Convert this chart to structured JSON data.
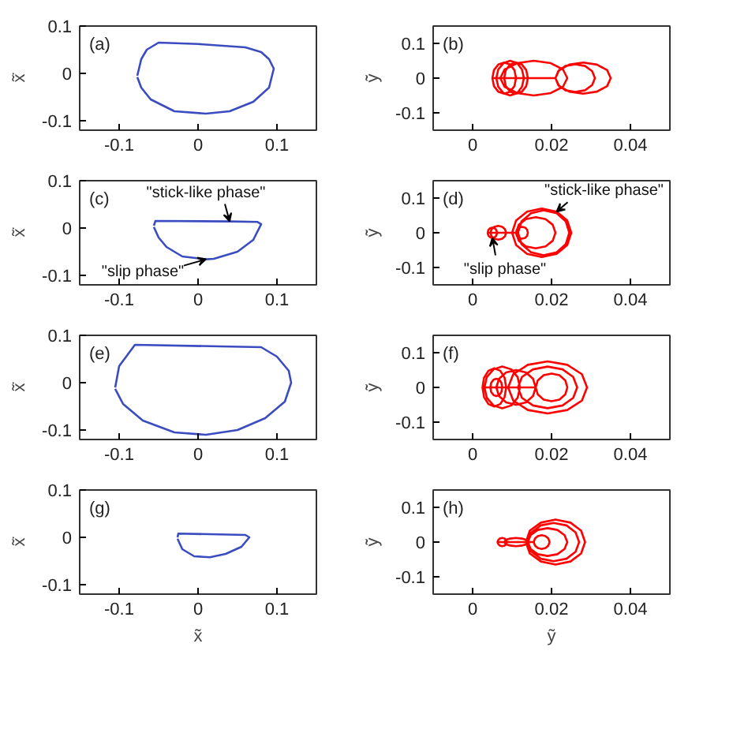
{
  "chart_data": [
    {
      "type": "line",
      "title": "(a)",
      "ylabel": "x̃̇",
      "xlim": [
        -0.15,
        0.15
      ],
      "ylim": [
        -0.12,
        0.1
      ],
      "xticks": [
        -0.1,
        0,
        0.1
      ],
      "yticks": [
        -0.1,
        0,
        0.1
      ],
      "series": [
        {
          "color": "#3b4cc0",
          "x": [
            -0.077,
            -0.072,
            -0.065,
            -0.05,
            0.0,
            0.06,
            0.08,
            0.09,
            0.096,
            0.09,
            0.07,
            0.04,
            0.01,
            -0.03,
            -0.06,
            -0.072,
            -0.077
          ],
          "values": [
            -0.005,
            0.03,
            0.05,
            0.065,
            0.062,
            0.055,
            0.045,
            0.03,
            0.01,
            -0.03,
            -0.06,
            -0.08,
            -0.085,
            -0.08,
            -0.055,
            -0.03,
            -0.008
          ]
        }
      ]
    },
    {
      "type": "line",
      "title": "(b)",
      "ylabel": "ỹ̇",
      "xlim": [
        -0.01,
        0.05
      ],
      "ylim": [
        -0.15,
        0.15
      ],
      "xticks": [
        0,
        0.02,
        0.04
      ],
      "yticks": [
        -0.1,
        0,
        0.1
      ],
      "series": [
        {
          "color": "#ff0000",
          "x": [
            0.005,
            0.0054,
            0.0065,
            0.008,
            0.0095,
            0.0106,
            0.011,
            0.0106,
            0.0095,
            0.008,
            0.0065,
            0.0054,
            0.005,
            0.006,
            0.0065,
            0.0078,
            0.0095,
            0.0113,
            0.0125,
            0.013,
            0.0125,
            0.0113,
            0.0095,
            0.0078,
            0.0065,
            0.006,
            0.008,
            0.0084,
            0.0095,
            0.011,
            0.0125,
            0.0136,
            0.014,
            0.0136,
            0.0125,
            0.011,
            0.0095,
            0.0084,
            0.008,
            0.007,
            0.0081,
            0.0113,
            0.0155,
            0.0198,
            0.0229,
            0.024,
            0.0229,
            0.0198,
            0.0155,
            0.0113,
            0.0081,
            0.007,
            0.021,
            0.0217,
            0.0235,
            0.026,
            0.0285,
            0.0303,
            0.031,
            0.0303,
            0.0285,
            0.026,
            0.0235,
            0.0217,
            0.021,
            0.0219,
            0.0245,
            0.028,
            0.0315,
            0.0341,
            0.035,
            0.0341,
            0.0315,
            0.028,
            0.0245,
            0.0219,
            0.021
          ],
          "values": [
            0,
            0.023,
            0.039,
            0.045,
            0.039,
            0.023,
            0,
            -0.023,
            -0.039,
            -0.045,
            -0.039,
            -0.023,
            0,
            0,
            0.025,
            0.043,
            0.05,
            0.043,
            0.025,
            0,
            -0.025,
            -0.043,
            -0.05,
            -0.043,
            -0.025,
            0,
            0,
            0.023,
            0.039,
            0.045,
            0.039,
            0.023,
            0,
            -0.023,
            -0.039,
            -0.045,
            -0.039,
            -0.023,
            0,
            0,
            0.025,
            0.043,
            0.05,
            0.043,
            0.025,
            0,
            -0.025,
            -0.043,
            -0.05,
            -0.043,
            -0.025,
            0,
            0,
            0.02,
            0.035,
            0.04,
            0.035,
            0.02,
            0,
            -0.02,
            -0.035,
            -0.04,
            -0.035,
            -0.02,
            0,
            0.023,
            0.039,
            0.045,
            0.039,
            0.023,
            0,
            -0.023,
            -0.039,
            -0.045,
            -0.039,
            -0.023,
            0
          ]
        }
      ]
    },
    {
      "type": "line",
      "title": "(c)",
      "ylabel": "x̃̇",
      "xlim": [
        -0.15,
        0.15
      ],
      "ylim": [
        -0.12,
        0.1
      ],
      "xticks": [
        -0.1,
        0,
        0.1
      ],
      "yticks": [
        -0.1,
        0,
        0.1
      ],
      "annotations": [
        {
          "text": "\"stick-like phase\"",
          "x": 0.04,
          "y": 0.014
        },
        {
          "text": "\"slip phase\"",
          "x": 0.01,
          "y": -0.066
        }
      ],
      "series": [
        {
          "color": "#3b4cc0",
          "x": [
            -0.056,
            -0.054,
            0.04,
            0.075,
            0.08,
            0.07,
            0.05,
            0.02,
            0.01,
            -0.02,
            -0.04,
            -0.05,
            -0.056
          ],
          "values": [
            0.005,
            0.015,
            0.014,
            0.013,
            0.008,
            -0.025,
            -0.05,
            -0.065,
            -0.066,
            -0.06,
            -0.04,
            -0.02,
            0.002
          ]
        }
      ]
    },
    {
      "type": "line",
      "title": "(d)",
      "ylabel": "ỹ̇",
      "xlim": [
        -0.01,
        0.05
      ],
      "ylim": [
        -0.15,
        0.15
      ],
      "xticks": [
        0,
        0.02,
        0.04
      ],
      "yticks": [
        -0.1,
        0,
        0.1
      ],
      "annotations": [
        {
          "text": "\"stick-like phase\"",
          "x": 0.0213,
          "y": 0.061
        },
        {
          "text": "\"slip phase\"",
          "x": 0.005,
          "y": -0.015
        }
      ],
      "series": [
        {
          "color": "#ff0000",
          "x": [
            0.0038,
            0.004,
            0.0044,
            0.005,
            0.0056,
            0.006,
            0.0062,
            0.006,
            0.0056,
            0.005,
            0.0044,
            0.004,
            0.0038,
            0.0045,
            0.0048,
            0.0055,
            0.0065,
            0.0075,
            0.0082,
            0.0085,
            0.0082,
            0.0075,
            0.0065,
            0.0055,
            0.0048,
            0.0045,
            0.011,
            0.0112,
            0.0118,
            0.0125,
            0.0133,
            0.0138,
            0.014,
            0.0138,
            0.0133,
            0.0125,
            0.0118,
            0.0112,
            0.011,
            0.011,
            0.0117,
            0.0135,
            0.016,
            0.0185,
            0.0203,
            0.021,
            0.0203,
            0.0185,
            0.016,
            0.0135,
            0.0117,
            0.011,
            0.0115,
            0.0124,
            0.0148,
            0.018,
            0.0213,
            0.0236,
            0.0245,
            0.0236,
            0.0213,
            0.018,
            0.0148,
            0.0124,
            0.0115,
            0.01,
            0.011,
            0.0138,
            0.0175,
            0.0213,
            0.024,
            0.025,
            0.024,
            0.0213,
            0.0175,
            0.0138,
            0.011,
            0.01
          ],
          "values": [
            0,
            0.008,
            0.013,
            0.015,
            0.013,
            0.008,
            0,
            -0.008,
            -0.013,
            -0.015,
            -0.013,
            -0.008,
            0,
            0,
            0.01,
            0.017,
            0.02,
            0.017,
            0.01,
            0,
            -0.01,
            -0.017,
            -0.02,
            -0.017,
            -0.01,
            0,
            0,
            0.009,
            0.015,
            0.017,
            0.015,
            0.009,
            0,
            -0.009,
            -0.015,
            -0.017,
            -0.015,
            -0.009,
            0,
            0,
            0.023,
            0.039,
            0.045,
            0.039,
            0.023,
            0,
            -0.023,
            -0.039,
            -0.045,
            -0.039,
            -0.023,
            0,
            0,
            0.033,
            0.056,
            0.065,
            0.056,
            0.033,
            0,
            -0.033,
            -0.056,
            -0.065,
            -0.056,
            -0.033,
            0,
            0,
            0.035,
            0.061,
            0.07,
            0.061,
            0.035,
            0,
            -0.035,
            -0.061,
            -0.07,
            -0.061,
            -0.035,
            0
          ]
        }
      ]
    },
    {
      "type": "line",
      "title": "(e)",
      "ylabel": "x̃̇",
      "xlim": [
        -0.15,
        0.15
      ],
      "ylim": [
        -0.12,
        0.1
      ],
      "xticks": [
        -0.1,
        0,
        0.1
      ],
      "yticks": [
        -0.1,
        0,
        0.1
      ],
      "series": [
        {
          "color": "#3b4cc0",
          "x": [
            -0.105,
            -0.1,
            -0.08,
            0.08,
            0.1,
            0.115,
            0.118,
            0.11,
            0.085,
            0.05,
            0.01,
            -0.03,
            -0.07,
            -0.095,
            -0.105
          ],
          "values": [
            -0.01,
            0.035,
            0.08,
            0.075,
            0.055,
            0.025,
            0.0,
            -0.04,
            -0.075,
            -0.1,
            -0.11,
            -0.105,
            -0.08,
            -0.045,
            -0.013
          ]
        }
      ]
    },
    {
      "type": "line",
      "title": "(f)",
      "ylabel": "ỹ̇",
      "xlim": [
        -0.01,
        0.05
      ],
      "ylim": [
        -0.15,
        0.15
      ],
      "xticks": [
        0,
        0.02,
        0.04
      ],
      "yticks": [
        -0.1,
        0,
        0.1
      ],
      "series": [
        {
          "color": "#ff0000",
          "x": [
            0.0045,
            0.0047,
            0.0053,
            0.006,
            0.0068,
            0.0073,
            0.0075,
            0.0073,
            0.0068,
            0.006,
            0.0053,
            0.0047,
            0.0045,
            0.0025,
            0.0029,
            0.004,
            0.0055,
            0.007,
            0.0081,
            0.0085,
            0.0081,
            0.007,
            0.0055,
            0.004,
            0.0029,
            0.0025,
            0.003,
            0.0036,
            0.0053,
            0.0075,
            0.0098,
            0.0114,
            0.012,
            0.0114,
            0.0098,
            0.0075,
            0.0053,
            0.0036,
            0.003,
            0.006,
            0.0067,
            0.0085,
            0.011,
            0.0135,
            0.0153,
            0.016,
            0.0153,
            0.0135,
            0.011,
            0.0085,
            0.0067,
            0.006,
            0.016,
            0.0165,
            0.018,
            0.02,
            0.022,
            0.0235,
            0.024,
            0.0235,
            0.022,
            0.02,
            0.018,
            0.0165,
            0.016,
            0.0115,
            0.0125,
            0.0153,
            0.019,
            0.0228,
            0.0255,
            0.0265,
            0.0255,
            0.0228,
            0.019,
            0.0153,
            0.0125,
            0.0115,
            0.009,
            0.0103,
            0.014,
            0.019,
            0.024,
            0.0277,
            0.029,
            0.0277,
            0.024,
            0.019,
            0.014,
            0.0103,
            0.009
          ],
          "values": [
            0,
            0.013,
            0.022,
            0.025,
            0.022,
            0.013,
            0,
            -0.013,
            -0.022,
            -0.025,
            -0.022,
            -0.013,
            0,
            0,
            0.028,
            0.048,
            0.055,
            0.048,
            0.028,
            0,
            -0.028,
            -0.048,
            -0.055,
            -0.048,
            -0.028,
            0,
            0,
            0.03,
            0.052,
            0.06,
            0.052,
            0.03,
            0,
            -0.03,
            -0.052,
            -0.06,
            -0.052,
            -0.03,
            0,
            0,
            0.025,
            0.043,
            0.05,
            0.043,
            0.025,
            0,
            -0.025,
            -0.043,
            -0.05,
            -0.043,
            -0.025,
            0,
            0,
            0.02,
            0.035,
            0.04,
            0.035,
            0.02,
            0,
            -0.02,
            -0.035,
            -0.04,
            -0.035,
            -0.02,
            0,
            0,
            0.03,
            0.052,
            0.06,
            0.052,
            0.03,
            0,
            -0.03,
            -0.052,
            -0.06,
            -0.052,
            -0.03,
            0,
            0,
            0.038,
            0.065,
            0.075,
            0.065,
            0.038,
            0,
            -0.038,
            -0.065,
            -0.075,
            -0.065,
            -0.038,
            0
          ]
        }
      ]
    },
    {
      "type": "line",
      "title": "(g)",
      "ylabel": "x̃̇",
      "xlabel": "x̃",
      "xlim": [
        -0.15,
        0.15
      ],
      "ylim": [
        -0.12,
        0.1
      ],
      "xticks": [
        -0.1,
        0,
        0.1
      ],
      "yticks": [
        -0.1,
        0,
        0.1
      ],
      "series": [
        {
          "color": "#3b4cc0",
          "x": [
            -0.026,
            -0.025,
            0.06,
            0.065,
            0.055,
            0.035,
            0.015,
            -0.005,
            -0.02,
            -0.026
          ],
          "values": [
            0.0,
            0.008,
            0.005,
            0.0,
            -0.02,
            -0.035,
            -0.042,
            -0.04,
            -0.025,
            -0.003
          ]
        }
      ]
    },
    {
      "type": "line",
      "title": "(h)",
      "ylabel": "ỹ̇",
      "xlabel": "ỹ",
      "xlim": [
        -0.01,
        0.05
      ],
      "ylim": [
        -0.15,
        0.15
      ],
      "xticks": [
        0,
        0.02,
        0.04
      ],
      "yticks": [
        -0.1,
        0,
        0.1
      ],
      "series": [
        {
          "color": "#ff0000",
          "x": [
            0.0063,
            0.0065,
            0.0069,
            0.0075,
            0.0081,
            0.0085,
            0.0087,
            0.0085,
            0.0081,
            0.0075,
            0.0069,
            0.0065,
            0.0063,
            0.008,
            0.0084,
            0.0095,
            0.011,
            0.0125,
            0.0136,
            0.014,
            0.0136,
            0.0125,
            0.011,
            0.0095,
            0.0084,
            0.008,
            0.0155,
            0.0158,
            0.0165,
            0.0175,
            0.0185,
            0.0192,
            0.0195,
            0.0192,
            0.0185,
            0.0175,
            0.0165,
            0.0158,
            0.0155,
            0.014,
            0.0147,
            0.0165,
            0.019,
            0.0215,
            0.0233,
            0.024,
            0.0233,
            0.0215,
            0.019,
            0.0165,
            0.0147,
            0.014,
            0.014,
            0.0149,
            0.0173,
            0.0205,
            0.0238,
            0.0261,
            0.027,
            0.0261,
            0.0238,
            0.0205,
            0.0173,
            0.0149,
            0.014,
            0.0135,
            0.0145,
            0.0173,
            0.021,
            0.0248,
            0.0275,
            0.0285,
            0.0275,
            0.0248,
            0.021,
            0.0173,
            0.0145,
            0.0135
          ],
          "values": [
            0,
            0.006,
            0.01,
            0.012,
            0.01,
            0.006,
            0,
            -0.006,
            -0.01,
            -0.012,
            -0.01,
            -0.006,
            0,
            0,
            0.006,
            0.01,
            0.012,
            0.01,
            0.006,
            0,
            -0.006,
            -0.01,
            -0.012,
            -0.01,
            -0.006,
            0,
            0,
            0.01,
            0.017,
            0.02,
            0.017,
            0.01,
            0,
            -0.01,
            -0.017,
            -0.02,
            -0.017,
            -0.01,
            0,
            0,
            0.02,
            0.035,
            0.04,
            0.035,
            0.02,
            0,
            -0.02,
            -0.035,
            -0.04,
            -0.035,
            -0.02,
            0,
            0,
            0.028,
            0.048,
            0.055,
            0.048,
            0.028,
            0,
            -0.028,
            -0.048,
            -0.055,
            -0.048,
            -0.028,
            0,
            0,
            0.033,
            0.056,
            0.065,
            0.056,
            0.033,
            0,
            -0.033,
            -0.056,
            -0.065,
            -0.056,
            -0.033,
            0
          ]
        }
      ]
    }
  ]
}
